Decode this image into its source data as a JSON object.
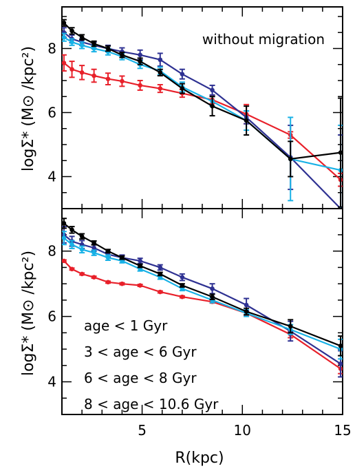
{
  "chart_data": [
    {
      "type": "line",
      "panel": "top",
      "annotation": "without migration",
      "ylabel": "logΣ* (M⊙ /kpc²)",
      "xlabel": "",
      "xlim": [
        1,
        15
      ],
      "ylim": [
        3,
        9.3
      ],
      "xticks": [
        5,
        10,
        15
      ],
      "yticks": [
        4,
        6,
        8
      ],
      "series": [
        {
          "name": "age < 1 Gyr",
          "color": "#e8202a",
          "x": [
            1.1,
            1.5,
            2.0,
            2.6,
            3.3,
            4.0,
            4.9,
            5.9,
            7.0,
            8.5,
            10.2,
            12.4,
            14.9
          ],
          "y": [
            7.55,
            7.35,
            7.25,
            7.15,
            7.05,
            6.98,
            6.85,
            6.75,
            6.6,
            6.4,
            5.95,
            5.3,
            3.9
          ],
          "err": [
            0.25,
            0.25,
            0.22,
            0.2,
            0.18,
            0.16,
            0.15,
            0.12,
            0.12,
            0.12,
            0.3,
            0.1,
            0.2
          ]
        },
        {
          "name": "3 < age < 6 Gyr",
          "color": "#2e3192",
          "x": [
            1.1,
            1.5,
            2.0,
            2.6,
            3.3,
            4.0,
            4.9,
            5.9,
            7.0,
            8.5,
            10.2,
            12.4,
            14.9
          ],
          "y": [
            8.5,
            8.3,
            8.2,
            8.1,
            8.0,
            7.9,
            7.8,
            7.65,
            7.2,
            6.7,
            5.85,
            4.6,
            3.0
          ],
          "err": [
            0.15,
            0.12,
            0.1,
            0.1,
            0.1,
            0.12,
            0.15,
            0.2,
            0.15,
            0.15,
            0.2,
            1.0,
            2.3
          ]
        },
        {
          "name": "6 < age < 8 Gyr",
          "color": "#17b1e6",
          "x": [
            1.1,
            1.5,
            2.0,
            2.6,
            3.3,
            4.0,
            4.9,
            5.9,
            7.0,
            8.5,
            10.2,
            12.4,
            14.9
          ],
          "y": [
            8.35,
            8.2,
            8.1,
            8.0,
            7.9,
            7.75,
            7.5,
            7.3,
            6.8,
            6.35,
            5.75,
            4.55,
            4.2
          ],
          "err": [
            0.12,
            0.1,
            0.1,
            0.1,
            0.1,
            0.1,
            0.12,
            0.12,
            0.15,
            0.15,
            0.3,
            1.3,
            1.4
          ]
        },
        {
          "name": "8 < age < 10.6 Gyr",
          "color": "#000000",
          "x": [
            1.1,
            1.5,
            2.0,
            2.6,
            3.3,
            4.0,
            4.9,
            5.9,
            7.0,
            8.5,
            10.2,
            12.4,
            14.9
          ],
          "y": [
            8.8,
            8.55,
            8.35,
            8.15,
            8.0,
            7.8,
            7.6,
            7.25,
            6.75,
            6.2,
            5.75,
            4.55,
            4.75
          ],
          "err": [
            0.1,
            0.1,
            0.08,
            0.08,
            0.08,
            0.08,
            0.1,
            0.1,
            0.15,
            0.3,
            0.45,
            0.55,
            1.7
          ]
        }
      ]
    },
    {
      "type": "line",
      "panel": "bottom",
      "annotation": "",
      "ylabel": "logΣ* (M⊙ /kpc²)",
      "xlabel": "R(kpc)",
      "xlim": [
        1,
        15
      ],
      "ylim": [
        3,
        9.3
      ],
      "xticks": [
        5,
        10,
        15
      ],
      "yticks": [
        4,
        6,
        8
      ],
      "legend_position": "bottom-left",
      "series": [
        {
          "name": "age < 1 Gyr",
          "color": "#e8202a",
          "x": [
            1.1,
            1.5,
            2.0,
            2.6,
            3.3,
            4.0,
            4.9,
            5.9,
            7.0,
            8.5,
            10.2,
            12.4,
            14.9
          ],
          "y": [
            7.7,
            7.45,
            7.3,
            7.2,
            7.05,
            7.0,
            6.95,
            6.75,
            6.6,
            6.45,
            6.1,
            5.45,
            4.4
          ],
          "err": [
            0.03,
            0.03,
            0.03,
            0.03,
            0.03,
            0.03,
            0.03,
            0.03,
            0.03,
            0.04,
            0.06,
            0.1,
            0.15
          ]
        },
        {
          "name": "3 < age < 6 Gyr",
          "color": "#2e3192",
          "x": [
            1.1,
            1.5,
            2.0,
            2.6,
            3.3,
            4.0,
            4.9,
            5.9,
            7.0,
            8.5,
            10.2,
            12.4,
            14.9
          ],
          "y": [
            8.5,
            8.3,
            8.2,
            8.1,
            7.9,
            7.8,
            7.7,
            7.5,
            7.2,
            6.85,
            6.35,
            5.55,
            4.55
          ],
          "err": [
            0.25,
            0.15,
            0.12,
            0.1,
            0.08,
            0.08,
            0.08,
            0.08,
            0.1,
            0.15,
            0.2,
            0.3,
            0.4
          ]
        },
        {
          "name": "6 < age < 8 Gyr",
          "color": "#17b1e6",
          "x": [
            1.1,
            1.5,
            2.0,
            2.6,
            3.3,
            4.0,
            4.9,
            5.9,
            7.0,
            8.5,
            10.2,
            12.4,
            14.9
          ],
          "y": [
            8.4,
            8.2,
            8.05,
            7.95,
            7.8,
            7.7,
            7.45,
            7.2,
            6.85,
            6.5,
            6.1,
            5.6,
            5.0
          ],
          "err": [
            0.2,
            0.12,
            0.1,
            0.08,
            0.08,
            0.06,
            0.06,
            0.06,
            0.06,
            0.08,
            0.1,
            0.15,
            0.3
          ]
        },
        {
          "name": "8 < age < 10.6 Gyr",
          "color": "#000000",
          "x": [
            1.1,
            1.5,
            2.0,
            2.6,
            3.3,
            4.0,
            4.9,
            5.9,
            7.0,
            8.5,
            10.2,
            12.4,
            14.9
          ],
          "y": [
            8.85,
            8.65,
            8.45,
            8.25,
            8.0,
            7.8,
            7.55,
            7.3,
            6.95,
            6.6,
            6.15,
            5.7,
            5.1
          ],
          "err": [
            0.15,
            0.1,
            0.08,
            0.06,
            0.05,
            0.05,
            0.05,
            0.05,
            0.05,
            0.08,
            0.1,
            0.2,
            0.3
          ]
        }
      ]
    }
  ]
}
